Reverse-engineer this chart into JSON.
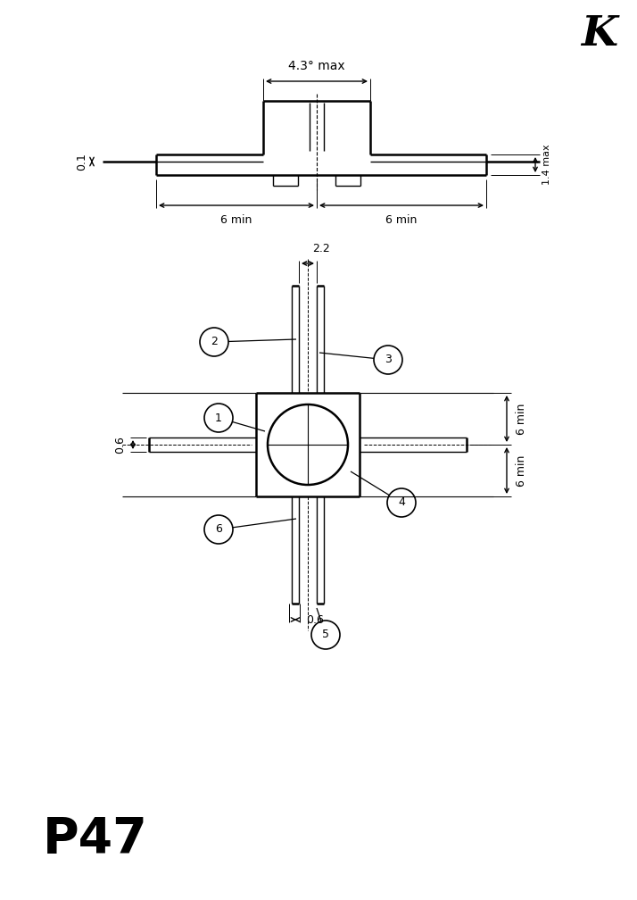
{
  "bg_color": "#ffffff",
  "line_color": "#000000",
  "lw": 1.8,
  "tlw": 1.0,
  "fig_width": 7.14,
  "fig_height": 10.08,
  "title_K": "K",
  "title_P47": "P47",
  "top_view": {
    "label_43_max": "4.3° max",
    "label_14_max": "1.4 max",
    "label_01": "0.1",
    "label_6min_left": "6 min",
    "label_6min_right": "6 min"
  },
  "bottom_view": {
    "label_22": "2.2",
    "label_06_left": "0.6",
    "label_06_bottom": "0.6",
    "label_6min_top": "6 min",
    "label_6min_bottom": "6 min",
    "pins": [
      "1",
      "2",
      "3",
      "4",
      "5",
      "6"
    ]
  }
}
